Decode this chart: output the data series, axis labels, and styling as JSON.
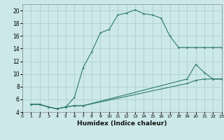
{
  "xlabel": "Humidex (Indice chaleur)",
  "bg_color": "#cce8e8",
  "line_color": "#2d7a6e",
  "grid_color": "#a8cccc",
  "xlim": [
    0,
    23
  ],
  "ylim": [
    4,
    21
  ],
  "yticks": [
    4,
    6,
    8,
    10,
    12,
    14,
    16,
    18,
    20
  ],
  "xticks": [
    0,
    1,
    2,
    3,
    4,
    5,
    6,
    7,
    8,
    9,
    10,
    11,
    12,
    13,
    14,
    15,
    16,
    17,
    18,
    19,
    20,
    21,
    22,
    23
  ],
  "line1_x": [
    1,
    2,
    3,
    4,
    5,
    6,
    7,
    8,
    9,
    10,
    11,
    12,
    13,
    14,
    15,
    16,
    17,
    18,
    19,
    20,
    21,
    22,
    23
  ],
  "line1_y": [
    5.2,
    5.2,
    4.8,
    4.5,
    4.8,
    6.3,
    11.0,
    13.5,
    16.5,
    17.0,
    19.3,
    19.6,
    20.1,
    19.5,
    19.3,
    18.8,
    16.0,
    14.2,
    14.2,
    14.2,
    14.2,
    14.2,
    14.2
  ],
  "line2_x": [
    1,
    2,
    3,
    4,
    5,
    6,
    7,
    19,
    20,
    21,
    22,
    23
  ],
  "line2_y": [
    5.2,
    5.2,
    4.8,
    4.5,
    4.8,
    5.0,
    5.0,
    9.2,
    11.5,
    10.2,
    9.2,
    9.2
  ],
  "line3_x": [
    1,
    2,
    3,
    4,
    5,
    6,
    7,
    19,
    20,
    21,
    22,
    23
  ],
  "line3_y": [
    5.2,
    5.2,
    4.8,
    4.5,
    4.8,
    5.0,
    5.0,
    8.5,
    9.0,
    9.2,
    9.2,
    9.2
  ]
}
